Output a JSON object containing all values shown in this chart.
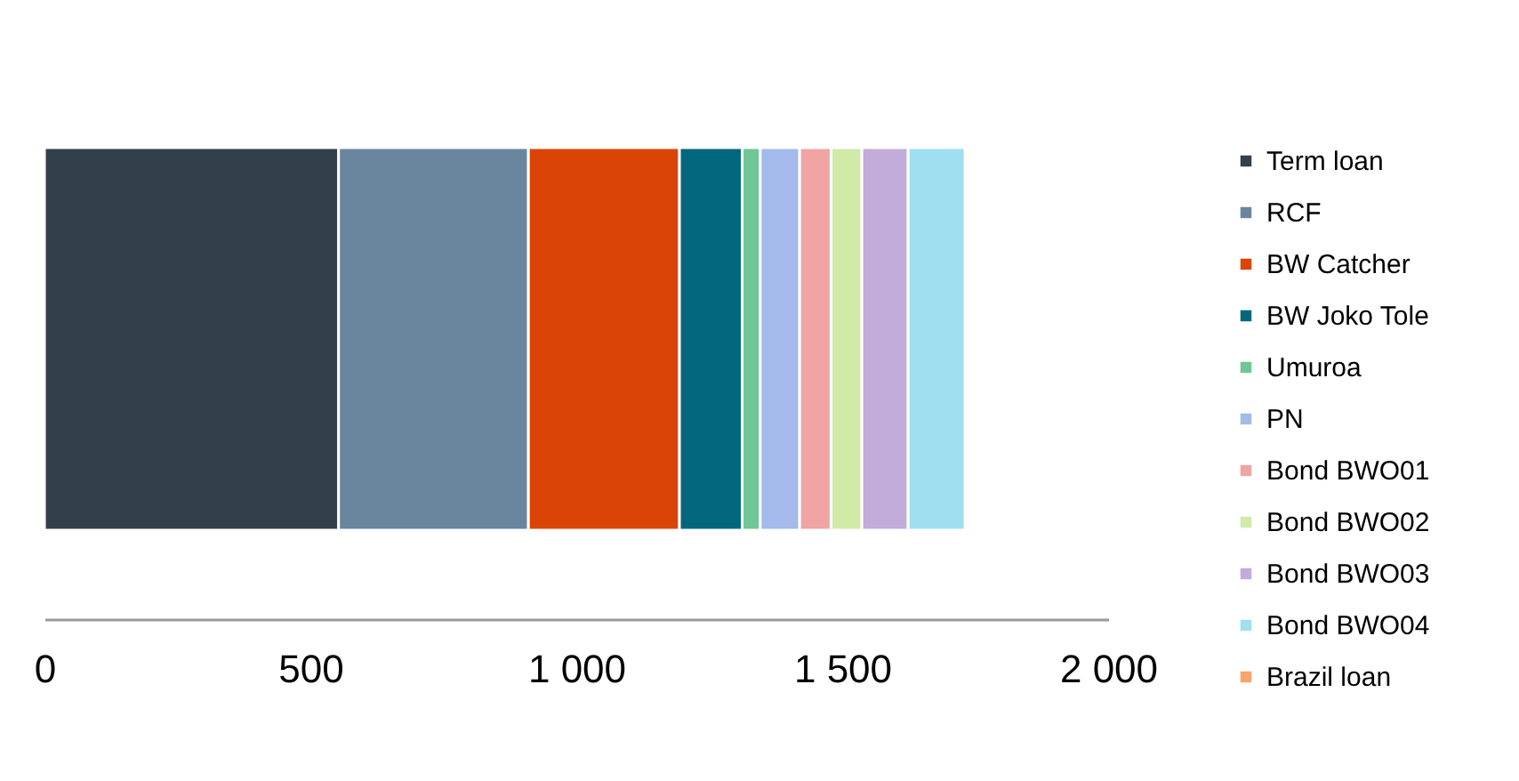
{
  "chart_data": {
    "type": "bar",
    "orientation": "horizontal",
    "stacked": true,
    "categories": [
      null
    ],
    "series": [
      {
        "name": "Term loan",
        "color": "#333f4a",
        "values": [
          553
        ]
      },
      {
        "name": "RCF",
        "color": "#6a869e",
        "values": [
          357
        ]
      },
      {
        "name": "BW Catcher",
        "color": "#db4407",
        "values": [
          284
        ]
      },
      {
        "name": "BW Joko Tole",
        "color": "#03677c",
        "values": [
          118
        ]
      },
      {
        "name": "Umuroa",
        "color": "#6fc795",
        "values": [
          34
        ]
      },
      {
        "name": "PN",
        "color": "#a3baea",
        "values": [
          74
        ]
      },
      {
        "name": "Bond BWO01",
        "color": "#f0a4a4",
        "values": [
          59
        ]
      },
      {
        "name": "Bond BWO02",
        "color": "#d2eaa8",
        "values": [
          58
        ]
      },
      {
        "name": "Bond BWO03",
        "color": "#c2acd9",
        "values": [
          87
        ]
      },
      {
        "name": "Bond BWO04",
        "color": "#a0dff0",
        "values": [
          107
        ]
      },
      {
        "name": "Brazil loan",
        "color": "#f9a46c",
        "values": [
          0
        ]
      }
    ],
    "xlim": [
      0,
      2000
    ],
    "xticks": [
      0,
      500,
      {
        "value": 1000,
        "label": "1 000"
      },
      {
        "value": 1500,
        "label": "1 500"
      },
      {
        "value": 2000,
        "label": "2 000"
      }
    ],
    "grid": false,
    "legend": "right"
  }
}
